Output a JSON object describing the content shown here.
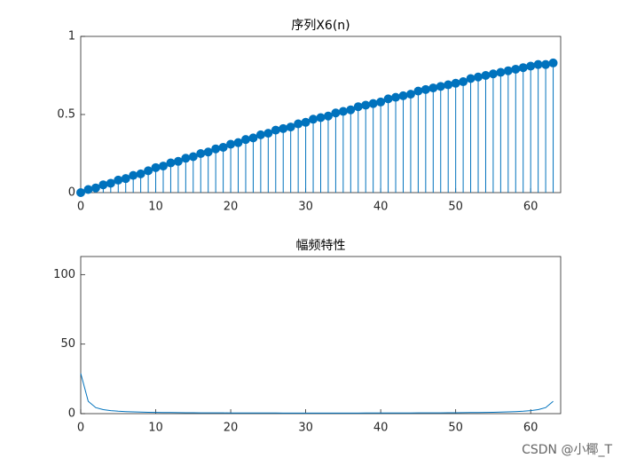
{
  "chart_data": [
    {
      "type": "stem",
      "title": "序列X6(n)",
      "color": "#0072bd",
      "x": [
        0,
        1,
        2,
        3,
        4,
        5,
        6,
        7,
        8,
        9,
        10,
        11,
        12,
        13,
        14,
        15,
        16,
        17,
        18,
        19,
        20,
        21,
        22,
        23,
        24,
        25,
        26,
        27,
        28,
        29,
        30,
        31,
        32,
        33,
        34,
        35,
        36,
        37,
        38,
        39,
        40,
        41,
        42,
        43,
        44,
        45,
        46,
        47,
        48,
        49,
        50,
        51,
        52,
        53,
        54,
        55,
        56,
        57,
        58,
        59,
        60,
        61,
        62,
        63
      ],
      "values": [
        0,
        0.02,
        0.03,
        0.05,
        0.06,
        0.08,
        0.09,
        0.11,
        0.12,
        0.14,
        0.16,
        0.17,
        0.19,
        0.2,
        0.22,
        0.23,
        0.25,
        0.26,
        0.28,
        0.29,
        0.31,
        0.32,
        0.34,
        0.35,
        0.37,
        0.38,
        0.4,
        0.41,
        0.42,
        0.44,
        0.45,
        0.47,
        0.48,
        0.49,
        0.51,
        0.52,
        0.53,
        0.55,
        0.56,
        0.57,
        0.58,
        0.6,
        0.61,
        0.62,
        0.63,
        0.65,
        0.66,
        0.67,
        0.68,
        0.69,
        0.7,
        0.71,
        0.73,
        0.74,
        0.75,
        0.76,
        0.77,
        0.78,
        0.79,
        0.8,
        0.81,
        0.82,
        0.82,
        0.83
      ],
      "xlim": [
        0,
        64
      ],
      "xticks": [
        0,
        10,
        20,
        30,
        40,
        50,
        60
      ],
      "ylim": [
        0,
        1
      ],
      "yticks": [
        0,
        0.5,
        1
      ]
    },
    {
      "type": "line",
      "title": "幅频特性",
      "color": "#0072bd",
      "x": [
        0,
        1,
        2,
        3,
        4,
        5,
        6,
        7,
        8,
        9,
        10,
        11,
        12,
        13,
        14,
        15,
        16,
        17,
        18,
        19,
        20,
        21,
        22,
        23,
        24,
        25,
        26,
        27,
        28,
        29,
        30,
        31,
        32,
        33,
        34,
        35,
        36,
        37,
        38,
        39,
        40,
        41,
        42,
        43,
        44,
        45,
        46,
        47,
        48,
        49,
        50,
        51,
        52,
        53,
        54,
        55,
        56,
        57,
        58,
        59,
        60,
        61,
        62,
        63
      ],
      "values": [
        29.0,
        8.87,
        4.34,
        2.89,
        2.17,
        1.75,
        1.46,
        1.26,
        1.11,
        0.99,
        0.9,
        0.82,
        0.76,
        0.706,
        0.663,
        0.626,
        0.595,
        0.568,
        0.544,
        0.524,
        0.506,
        0.49,
        0.477,
        0.465,
        0.455,
        0.447,
        0.44,
        0.434,
        0.429,
        0.425,
        0.423,
        0.421,
        0.421,
        0.421,
        0.423,
        0.425,
        0.429,
        0.434,
        0.44,
        0.447,
        0.455,
        0.465,
        0.477,
        0.49,
        0.506,
        0.524,
        0.544,
        0.568,
        0.595,
        0.626,
        0.663,
        0.706,
        0.76,
        0.82,
        0.9,
        0.99,
        1.11,
        1.26,
        1.46,
        1.75,
        2.17,
        2.89,
        4.34,
        8.87
      ],
      "xlim": [
        0,
        64
      ],
      "xticks": [
        0,
        10,
        20,
        30,
        40,
        50,
        60
      ],
      "ylim": [
        0,
        113
      ],
      "yticks": [
        0,
        50,
        100
      ]
    }
  ],
  "watermark": "CSDN @小椰_T"
}
